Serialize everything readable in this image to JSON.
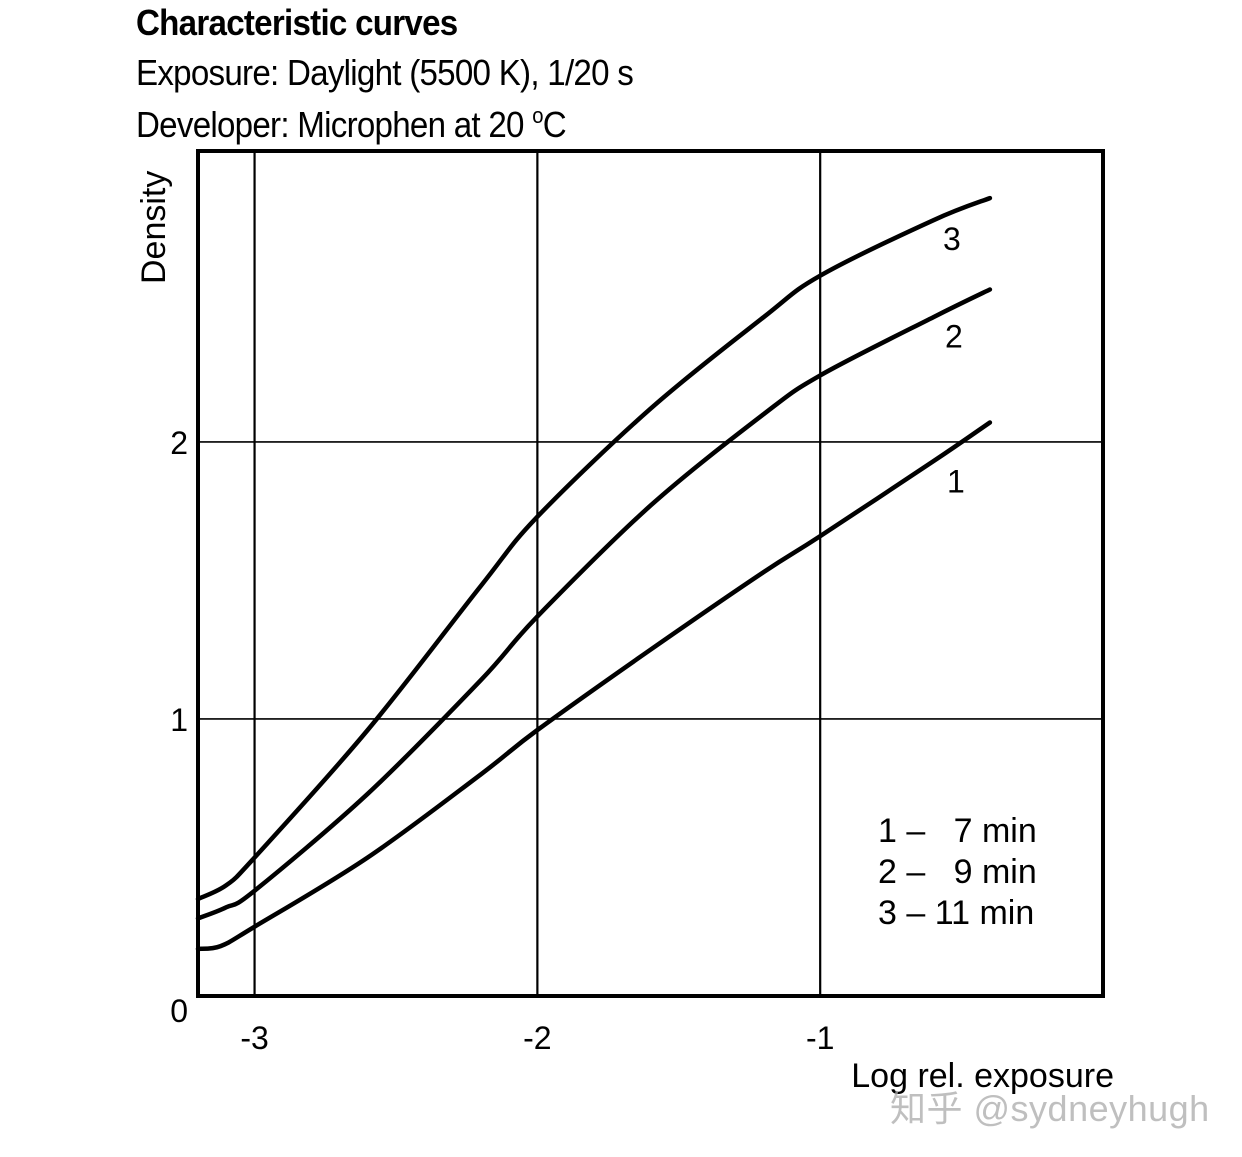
{
  "chart_data": {
    "type": "line",
    "title": "Characteristic curves",
    "subtitle_lines": [
      "Exposure: Daylight (5500 K), 1/20 s",
      "Developer: Microphen at 20 ",
      "C"
    ],
    "subtitle_superscript": "o",
    "xlabel": "Log rel. exposure",
    "ylabel": "Density",
    "xlim": [
      -3.2,
      -0.0
    ],
    "ylim": [
      0,
      3.05
    ],
    "xticks": [
      -3,
      -2,
      -1
    ],
    "xtick_labels": [
      "-3",
      "-2",
      "-1"
    ],
    "yticks": [
      0,
      1,
      2
    ],
    "ytick_labels": [
      "0",
      "1",
      "2"
    ],
    "grid": true,
    "series": [
      {
        "name": "1",
        "label": "1",
        "x": [
          -3.2,
          -3.12,
          -3.0,
          -2.6,
          -2.2,
          -2.0,
          -1.6,
          -1.2,
          -1.0,
          -0.6,
          -0.4
        ],
        "values": [
          0.17,
          0.18,
          0.25,
          0.5,
          0.8,
          0.96,
          1.25,
          1.53,
          1.66,
          1.93,
          2.07
        ]
      },
      {
        "name": "2",
        "label": "2",
        "x": [
          -3.2,
          -3.1,
          -3.0,
          -2.6,
          -2.2,
          -2.0,
          -1.6,
          -1.2,
          -1.0,
          -0.6,
          -0.4
        ],
        "values": [
          0.28,
          0.32,
          0.38,
          0.73,
          1.14,
          1.37,
          1.77,
          2.1,
          2.24,
          2.45,
          2.55
        ]
      },
      {
        "name": "3",
        "label": "3",
        "x": [
          -3.2,
          -3.1,
          -3.0,
          -2.6,
          -2.2,
          -2.0,
          -1.6,
          -1.2,
          -1.0,
          -0.6,
          -0.4
        ],
        "values": [
          0.35,
          0.4,
          0.5,
          0.96,
          1.48,
          1.73,
          2.12,
          2.45,
          2.6,
          2.8,
          2.88
        ]
      }
    ],
    "legend": {
      "position": "bottom-right",
      "entries": [
        "1 –   7 min",
        "2 –   9 min",
        "3 – 11 min"
      ]
    }
  },
  "watermark": "知乎 @sydneyhugh"
}
